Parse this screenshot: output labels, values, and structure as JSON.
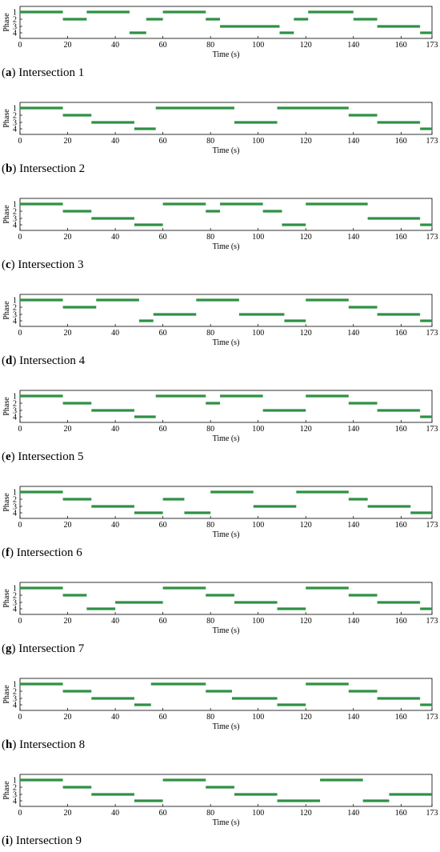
{
  "figure": {
    "bar_color": "#2e9145",
    "chart_type": "gantt",
    "panels": [
      {
        "label": "a",
        "caption": "Intersection 1",
        "ylabel": "Phase",
        "xlabel": "Time (s)",
        "xlim": [
          0,
          173
        ],
        "xticks": [
          0,
          20,
          40,
          60,
          80,
          100,
          120,
          140,
          160,
          173
        ],
        "phases": [
          "1",
          "2",
          "3",
          "4"
        ],
        "chart_data": {
          "type": "gantt",
          "segments": [
            {
              "phase": 1,
              "start": 0,
              "end": 18
            },
            {
              "phase": 2,
              "start": 18,
              "end": 28
            },
            {
              "phase": 1,
              "start": 28,
              "end": 46
            },
            {
              "phase": 4,
              "start": 46,
              "end": 53
            },
            {
              "phase": 2,
              "start": 53,
              "end": 60
            },
            {
              "phase": 1,
              "start": 60,
              "end": 78
            },
            {
              "phase": 2,
              "start": 78,
              "end": 84
            },
            {
              "phase": 3,
              "start": 84,
              "end": 109
            },
            {
              "phase": 4,
              "start": 109,
              "end": 115
            },
            {
              "phase": 2,
              "start": 115,
              "end": 121
            },
            {
              "phase": 1,
              "start": 121,
              "end": 140
            },
            {
              "phase": 2,
              "start": 140,
              "end": 150
            },
            {
              "phase": 3,
              "start": 150,
              "end": 168
            },
            {
              "phase": 4,
              "start": 168,
              "end": 173
            }
          ]
        }
      },
      {
        "label": "b",
        "caption": "Intersection 2",
        "ylabel": "Phase",
        "xlabel": "Time (s)",
        "xlim": [
          0,
          173
        ],
        "xticks": [
          0,
          20,
          40,
          60,
          80,
          100,
          120,
          140,
          160,
          173
        ],
        "phases": [
          "1",
          "2",
          "3",
          "4"
        ],
        "chart_data": {
          "type": "gantt",
          "segments": [
            {
              "phase": 1,
              "start": 0,
              "end": 18
            },
            {
              "phase": 2,
              "start": 18,
              "end": 30
            },
            {
              "phase": 3,
              "start": 30,
              "end": 48
            },
            {
              "phase": 4,
              "start": 48,
              "end": 57
            },
            {
              "phase": 1,
              "start": 57,
              "end": 90
            },
            {
              "phase": 3,
              "start": 90,
              "end": 108
            },
            {
              "phase": 1,
              "start": 108,
              "end": 138
            },
            {
              "phase": 2,
              "start": 138,
              "end": 150
            },
            {
              "phase": 3,
              "start": 150,
              "end": 168
            },
            {
              "phase": 4,
              "start": 168,
              "end": 173
            }
          ]
        }
      },
      {
        "label": "c",
        "caption": "Intersection 3",
        "ylabel": "Phase",
        "xlabel": "Time (s)",
        "xlim": [
          0,
          173
        ],
        "xticks": [
          0,
          20,
          40,
          60,
          80,
          100,
          120,
          140,
          160,
          173
        ],
        "phases": [
          "1",
          "2",
          "3",
          "4"
        ],
        "chart_data": {
          "type": "gantt",
          "segments": [
            {
              "phase": 1,
              "start": 0,
              "end": 18
            },
            {
              "phase": 2,
              "start": 18,
              "end": 30
            },
            {
              "phase": 3,
              "start": 30,
              "end": 48
            },
            {
              "phase": 4,
              "start": 48,
              "end": 60
            },
            {
              "phase": 1,
              "start": 60,
              "end": 78
            },
            {
              "phase": 2,
              "start": 78,
              "end": 84
            },
            {
              "phase": 1,
              "start": 84,
              "end": 102
            },
            {
              "phase": 2,
              "start": 102,
              "end": 110
            },
            {
              "phase": 4,
              "start": 110,
              "end": 120
            },
            {
              "phase": 1,
              "start": 120,
              "end": 146
            },
            {
              "phase": 3,
              "start": 146,
              "end": 168
            },
            {
              "phase": 4,
              "start": 168,
              "end": 173
            }
          ]
        }
      },
      {
        "label": "d",
        "caption": "Intersection 4",
        "ylabel": "Phase",
        "xlabel": "Time (s)",
        "xlim": [
          0,
          173
        ],
        "xticks": [
          0,
          20,
          40,
          60,
          80,
          100,
          120,
          140,
          160,
          173
        ],
        "phases": [
          "1",
          "2",
          "3",
          "4"
        ],
        "chart_data": {
          "type": "gantt",
          "segments": [
            {
              "phase": 1,
              "start": 0,
              "end": 18
            },
            {
              "phase": 2,
              "start": 18,
              "end": 32
            },
            {
              "phase": 1,
              "start": 32,
              "end": 50
            },
            {
              "phase": 4,
              "start": 50,
              "end": 56
            },
            {
              "phase": 3,
              "start": 56,
              "end": 74
            },
            {
              "phase": 1,
              "start": 74,
              "end": 92
            },
            {
              "phase": 3,
              "start": 92,
              "end": 111
            },
            {
              "phase": 4,
              "start": 111,
              "end": 120
            },
            {
              "phase": 1,
              "start": 120,
              "end": 138
            },
            {
              "phase": 2,
              "start": 138,
              "end": 150
            },
            {
              "phase": 3,
              "start": 150,
              "end": 168
            },
            {
              "phase": 4,
              "start": 168,
              "end": 173
            }
          ]
        }
      },
      {
        "label": "e",
        "caption": "Intersection 5",
        "ylabel": "Phase",
        "xlabel": "Time (s)",
        "xlim": [
          0,
          173
        ],
        "xticks": [
          0,
          20,
          40,
          60,
          80,
          100,
          120,
          140,
          160,
          173
        ],
        "phases": [
          "1",
          "2",
          "3",
          "4"
        ],
        "chart_data": {
          "type": "gantt",
          "segments": [
            {
              "phase": 1,
              "start": 0,
              "end": 18
            },
            {
              "phase": 2,
              "start": 18,
              "end": 30
            },
            {
              "phase": 3,
              "start": 30,
              "end": 48
            },
            {
              "phase": 4,
              "start": 48,
              "end": 57
            },
            {
              "phase": 1,
              "start": 57,
              "end": 78
            },
            {
              "phase": 2,
              "start": 78,
              "end": 84
            },
            {
              "phase": 1,
              "start": 84,
              "end": 102
            },
            {
              "phase": 3,
              "start": 102,
              "end": 120
            },
            {
              "phase": 1,
              "start": 120,
              "end": 138
            },
            {
              "phase": 2,
              "start": 138,
              "end": 150
            },
            {
              "phase": 3,
              "start": 150,
              "end": 168
            },
            {
              "phase": 4,
              "start": 168,
              "end": 173
            }
          ]
        }
      },
      {
        "label": "f",
        "caption": "Intersection 6",
        "ylabel": "Phase",
        "xlabel": "Time (s)",
        "xlim": [
          0,
          173
        ],
        "xticks": [
          0,
          20,
          40,
          60,
          80,
          100,
          120,
          140,
          160,
          173
        ],
        "phases": [
          "1",
          "2",
          "3",
          "4"
        ],
        "chart_data": {
          "type": "gantt",
          "segments": [
            {
              "phase": 1,
              "start": 0,
              "end": 18
            },
            {
              "phase": 2,
              "start": 18,
              "end": 30
            },
            {
              "phase": 3,
              "start": 30,
              "end": 48
            },
            {
              "phase": 4,
              "start": 48,
              "end": 60
            },
            {
              "phase": 2,
              "start": 60,
              "end": 69
            },
            {
              "phase": 4,
              "start": 69,
              "end": 80
            },
            {
              "phase": 1,
              "start": 80,
              "end": 98
            },
            {
              "phase": 3,
              "start": 98,
              "end": 116
            },
            {
              "phase": 1,
              "start": 116,
              "end": 138
            },
            {
              "phase": 2,
              "start": 138,
              "end": 146
            },
            {
              "phase": 3,
              "start": 146,
              "end": 164
            },
            {
              "phase": 4,
              "start": 164,
              "end": 173
            }
          ]
        }
      },
      {
        "label": "g",
        "caption": "Intersection 7",
        "ylabel": "Phase",
        "xlabel": "Time (s)",
        "xlim": [
          0,
          173
        ],
        "xticks": [
          0,
          20,
          40,
          60,
          80,
          100,
          120,
          140,
          160,
          173
        ],
        "phases": [
          "1",
          "2",
          "3",
          "4"
        ],
        "chart_data": {
          "type": "gantt",
          "segments": [
            {
              "phase": 1,
              "start": 0,
              "end": 18
            },
            {
              "phase": 2,
              "start": 18,
              "end": 28
            },
            {
              "phase": 4,
              "start": 28,
              "end": 40
            },
            {
              "phase": 3,
              "start": 40,
              "end": 60
            },
            {
              "phase": 1,
              "start": 60,
              "end": 78
            },
            {
              "phase": 2,
              "start": 78,
              "end": 90
            },
            {
              "phase": 3,
              "start": 90,
              "end": 108
            },
            {
              "phase": 4,
              "start": 108,
              "end": 120
            },
            {
              "phase": 1,
              "start": 120,
              "end": 138
            },
            {
              "phase": 2,
              "start": 138,
              "end": 150
            },
            {
              "phase": 3,
              "start": 150,
              "end": 168
            },
            {
              "phase": 4,
              "start": 168,
              "end": 173
            }
          ]
        }
      },
      {
        "label": "h",
        "caption": "Intersection 8",
        "ylabel": "Phase",
        "xlabel": "Time (s)",
        "xlim": [
          0,
          173
        ],
        "xticks": [
          0,
          20,
          40,
          60,
          80,
          100,
          120,
          140,
          160,
          173
        ],
        "phases": [
          "1",
          "2",
          "3",
          "4"
        ],
        "chart_data": {
          "type": "gantt",
          "segments": [
            {
              "phase": 1,
              "start": 0,
              "end": 18
            },
            {
              "phase": 2,
              "start": 18,
              "end": 30
            },
            {
              "phase": 3,
              "start": 30,
              "end": 48
            },
            {
              "phase": 4,
              "start": 48,
              "end": 55
            },
            {
              "phase": 1,
              "start": 55,
              "end": 78
            },
            {
              "phase": 2,
              "start": 78,
              "end": 89
            },
            {
              "phase": 3,
              "start": 89,
              "end": 108
            },
            {
              "phase": 4,
              "start": 108,
              "end": 120
            },
            {
              "phase": 1,
              "start": 120,
              "end": 138
            },
            {
              "phase": 2,
              "start": 138,
              "end": 150
            },
            {
              "phase": 3,
              "start": 150,
              "end": 168
            },
            {
              "phase": 4,
              "start": 168,
              "end": 173
            }
          ]
        }
      },
      {
        "label": "i",
        "caption": "Intersection 9",
        "ylabel": "Phase",
        "xlabel": "Time (s)",
        "xlim": [
          0,
          173
        ],
        "xticks": [
          0,
          20,
          40,
          60,
          80,
          100,
          120,
          140,
          160,
          173
        ],
        "phases": [
          "1",
          "2",
          "3",
          "4"
        ],
        "chart_data": {
          "type": "gantt",
          "segments": [
            {
              "phase": 1,
              "start": 0,
              "end": 18
            },
            {
              "phase": 2,
              "start": 18,
              "end": 30
            },
            {
              "phase": 3,
              "start": 30,
              "end": 48
            },
            {
              "phase": 4,
              "start": 48,
              "end": 60
            },
            {
              "phase": 1,
              "start": 60,
              "end": 78
            },
            {
              "phase": 2,
              "start": 78,
              "end": 90
            },
            {
              "phase": 3,
              "start": 90,
              "end": 108
            },
            {
              "phase": 4,
              "start": 108,
              "end": 126
            },
            {
              "phase": 1,
              "start": 126,
              "end": 144
            },
            {
              "phase": 4,
              "start": 144,
              "end": 155
            },
            {
              "phase": 3,
              "start": 155,
              "end": 173
            }
          ]
        }
      }
    ]
  }
}
